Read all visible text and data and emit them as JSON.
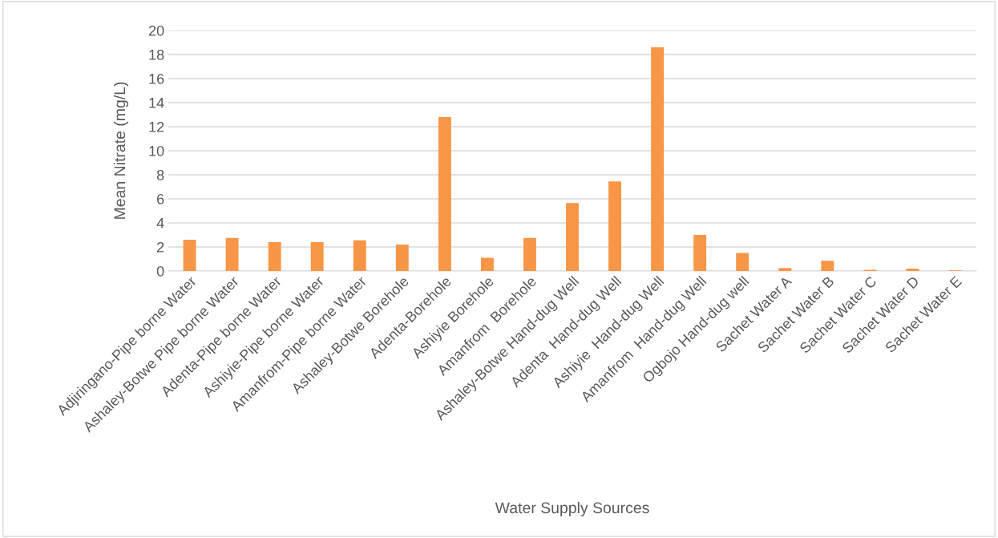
{
  "chart_data": {
    "type": "bar",
    "xlabel": "Water Supply Sources",
    "ylabel": "Mean Nitrate (mg/L)",
    "categories": [
      "Adjiringano-Pipe borne Water",
      "Ashaley-Botwe Pipe borne Water",
      "Adenta-Pipe borne Water",
      "Ashiyie-Pipe borne Water",
      "Amanfrom-Pipe borne Water",
      "Ashaley-Botwe Borehole",
      "Adenta-Borehole",
      "Ashiyie Borehole",
      "Amanfrom  Borehole",
      "Ashaley-Botwe Hand-dug Well",
      "Adenta  Hand-dug Well",
      "Ashiyie  Hand-dug Well",
      "Amanfrom  Hand-dug Well",
      "Ogbojo Hand-dug well",
      "Sachet Water A",
      "Sachet Water B",
      "Sachet Water C",
      "Sachet Water D",
      "Sachet Water E"
    ],
    "values": [
      2.6,
      2.75,
      2.4,
      2.4,
      2.55,
      2.2,
      12.8,
      1.1,
      2.75,
      5.65,
      7.45,
      18.6,
      3.0,
      1.5,
      0.25,
      0.85,
      0.1,
      0.2,
      0.05
    ],
    "color": "#f79646",
    "ylim": [
      0,
      20
    ],
    "yticks": [
      0,
      2,
      4,
      6,
      8,
      10,
      12,
      14,
      16,
      18,
      20
    ],
    "grid": "y"
  }
}
